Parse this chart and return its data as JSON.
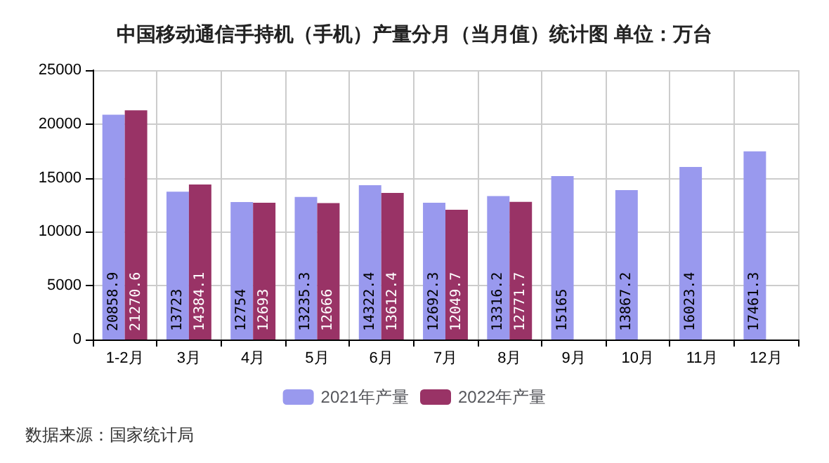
{
  "chart_data": {
    "type": "bar",
    "title": "中国移动通信手持机（手机）产量分月（当月值）统计图 单位：万台",
    "categories": [
      "1-2月",
      "3月",
      "4月",
      "5月",
      "6月",
      "7月",
      "8月",
      "9月",
      "10月",
      "11月",
      "12月"
    ],
    "series": [
      {
        "name": "2021年产量",
        "color": "#9999ee",
        "values": [
          20858.9,
          13723,
          12754,
          13235.3,
          14322.4,
          12692.3,
          13316.2,
          15165,
          13867.2,
          16023.4,
          17461.3
        ]
      },
      {
        "name": "2022年产量",
        "color": "#993366",
        "values": [
          21270.6,
          14384.1,
          12693,
          12666,
          13612.4,
          12049.7,
          12771.7,
          null,
          null,
          null,
          null
        ]
      }
    ],
    "ylim": [
      0,
      25000
    ],
    "yticks": [
      0,
      5000,
      10000,
      15000,
      20000,
      25000
    ],
    "grid": true,
    "legend": "bottom",
    "data_labels": true,
    "annotations": [
      "数据来源：国家统计局"
    ]
  }
}
